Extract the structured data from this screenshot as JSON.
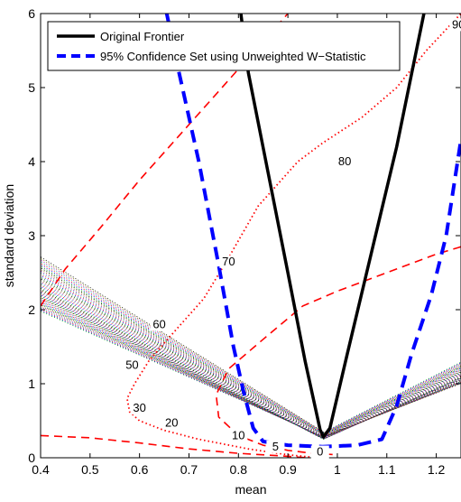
{
  "chart_data": {
    "type": "line",
    "xlabel": "mean",
    "ylabel": "standard deviation",
    "xlim": [
      0.4,
      1.25
    ],
    "ylim": [
      0,
      6
    ],
    "xticks": [
      0.4,
      0.5,
      0.6,
      0.7,
      0.8,
      0.9,
      1,
      1.1,
      1.2
    ],
    "xtick_labels": [
      "0.4",
      "0.5",
      "0.6",
      "0.7",
      "0.8",
      "0.9",
      "1",
      "1.1",
      "1.2"
    ],
    "yticks": [
      0,
      1,
      2,
      3,
      4,
      5,
      6
    ],
    "ytick_labels": [
      "0",
      "1",
      "2",
      "3",
      "4",
      "5",
      "6"
    ],
    "grid": false,
    "legend_position": "top-left",
    "legend": [
      {
        "label": "Original Frontier",
        "color": "#000000",
        "style": "solid"
      },
      {
        "label": "95% Confidence Set using Unweighted W−Statistic",
        "color": "#0000ff",
        "style": "dashed"
      }
    ],
    "series": [
      {
        "name": "Original Frontier",
        "color": "#000000",
        "style": "solid",
        "points": [
          [
            0.805,
            6.0
          ],
          [
            0.82,
            5.2
          ],
          [
            0.86,
            3.85
          ],
          [
            0.9,
            2.5
          ],
          [
            0.935,
            1.3
          ],
          [
            0.965,
            0.38
          ],
          [
            0.972,
            0.28
          ],
          [
            0.985,
            0.4
          ],
          [
            1.02,
            1.4
          ],
          [
            1.07,
            2.8
          ],
          [
            1.12,
            4.2
          ],
          [
            1.175,
            6.0
          ]
        ]
      },
      {
        "name": "95% Confidence Set using Unweighted W−Statistic",
        "color": "#0000ff",
        "style": "dashed",
        "points": [
          [
            0.655,
            6.0
          ],
          [
            0.68,
            5.2
          ],
          [
            0.72,
            4.0
          ],
          [
            0.76,
            2.6
          ],
          [
            0.79,
            1.5
          ],
          [
            0.81,
            0.9
          ],
          [
            0.83,
            0.4
          ],
          [
            0.85,
            0.22
          ],
          [
            0.9,
            0.17
          ],
          [
            0.97,
            0.15
          ],
          [
            1.04,
            0.17
          ],
          [
            1.09,
            0.25
          ],
          [
            1.12,
            0.7
          ],
          [
            1.15,
            1.4
          ],
          [
            1.19,
            2.2
          ],
          [
            1.22,
            3.0
          ],
          [
            1.25,
            4.3
          ]
        ]
      }
    ],
    "red_dashed_contours": [
      {
        "color": "#ff0000",
        "points": [
          [
            0.4,
            2.05
          ],
          [
            0.45,
            2.55
          ],
          [
            0.52,
            3.1
          ],
          [
            0.6,
            3.75
          ],
          [
            0.68,
            4.35
          ],
          [
            0.76,
            4.95
          ],
          [
            0.84,
            5.55
          ],
          [
            0.9,
            6.0
          ]
        ]
      },
      {
        "color": "#ff0000",
        "points": [
          [
            1.25,
            2.85
          ],
          [
            1.2,
            2.75
          ],
          [
            1.12,
            2.55
          ],
          [
            1.0,
            2.25
          ],
          [
            0.93,
            2.05
          ],
          [
            0.85,
            1.6
          ],
          [
            0.78,
            1.2
          ],
          [
            0.755,
            0.85
          ],
          [
            0.76,
            0.55
          ],
          [
            0.8,
            0.3
          ],
          [
            0.85,
            0.17
          ],
          [
            0.9,
            0.1
          ],
          [
            0.95,
            0.06
          ],
          [
            1.0,
            0.04
          ]
        ]
      },
      {
        "color": "#ff0000",
        "points": [
          [
            0.4,
            0.3
          ],
          [
            0.5,
            0.27
          ],
          [
            0.6,
            0.2
          ],
          [
            0.7,
            0.12
          ],
          [
            0.8,
            0.06
          ],
          [
            0.9,
            0.02
          ],
          [
            0.94,
            0.0
          ]
        ]
      }
    ],
    "red_dotted_contour": {
      "color": "#ff0000",
      "points": [
        [
          0.96,
          0.0
        ],
        [
          0.9,
          0.04
        ],
        [
          0.82,
          0.12
        ],
        [
          0.72,
          0.25
        ],
        [
          0.65,
          0.37
        ],
        [
          0.6,
          0.5
        ],
        [
          0.58,
          0.62
        ],
        [
          0.575,
          0.8
        ],
        [
          0.59,
          1.0
        ],
        [
          0.62,
          1.32
        ],
        [
          0.67,
          1.7
        ],
        [
          0.73,
          2.15
        ],
        [
          0.78,
          2.7
        ],
        [
          0.84,
          3.4
        ],
        [
          0.92,
          4.0
        ],
        [
          0.97,
          4.25
        ],
        [
          1.05,
          4.6
        ],
        [
          1.12,
          5.0
        ],
        [
          1.18,
          5.5
        ],
        [
          1.25,
          6.0
        ]
      ]
    },
    "contour_labels": [
      {
        "text": "0",
        "x": 0.965,
        "y": 0.03
      },
      {
        "text": "5",
        "x": 0.875,
        "y": 0.1
      },
      {
        "text": "10",
        "x": 0.8,
        "y": 0.25
      },
      {
        "text": "20",
        "x": 0.665,
        "y": 0.42
      },
      {
        "text": "30",
        "x": 0.6,
        "y": 0.62
      },
      {
        "text": "50",
        "x": 0.585,
        "y": 1.2
      },
      {
        "text": "60",
        "x": 0.64,
        "y": 1.75
      },
      {
        "text": "70",
        "x": 0.78,
        "y": 2.6
      },
      {
        "text": "80",
        "x": 1.015,
        "y": 3.95
      },
      {
        "text": "90",
        "x": 1.245,
        "y": 5.8
      }
    ],
    "simulated_frontiers_note": "",
    "simulated_frontier_colors": [
      "#00aa00",
      "#0000ff",
      "#ff0000",
      "#00aaaa",
      "#aa00aa",
      "#888800",
      "#000000"
    ]
  }
}
